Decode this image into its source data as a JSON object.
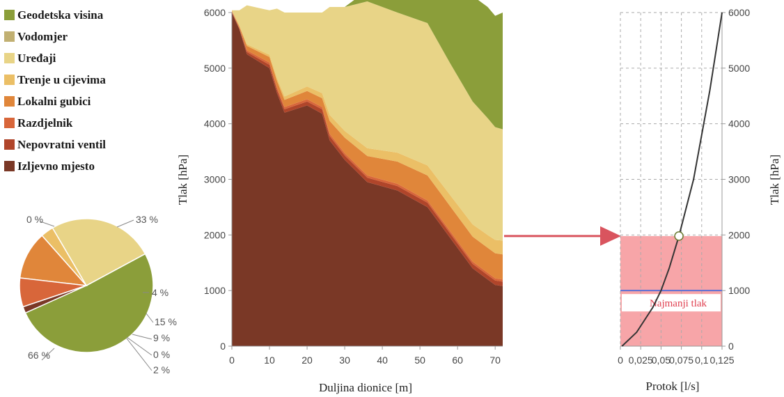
{
  "chart_data": [
    {
      "type": "area",
      "xlabel": "Duljina dionice [m]",
      "ylabel": "Tlak [hPa]",
      "xlim": [
        0,
        72
      ],
      "ylim": [
        0,
        6000
      ],
      "xticks": [
        "0",
        "10",
        "20",
        "30",
        "40",
        "50",
        "60",
        "70"
      ],
      "yticks": [
        "0",
        "1000",
        "2000",
        "3000",
        "4000",
        "5000",
        "6000"
      ],
      "grid": false,
      "legend_position": "left",
      "x": [
        0,
        2,
        4,
        10,
        12,
        14,
        20,
        24,
        26,
        30,
        36,
        44,
        52,
        58,
        64,
        68,
        70,
        72
      ],
      "series": [
        {
          "name": "Izljevno mjesto",
          "color": "#7a3826",
          "values": [
            6000,
            5700,
            5250,
            5000,
            4550,
            4200,
            4330,
            4180,
            3700,
            3350,
            2950,
            2800,
            2500,
            1950,
            1400,
            1200,
            1100,
            1080
          ]
        },
        {
          "name": "Nepovratni ventil",
          "color": "#b0452a",
          "values": [
            10,
            10,
            40,
            60,
            60,
            60,
            70,
            80,
            80,
            80,
            80,
            80,
            80,
            80,
            80,
            80,
            80,
            80
          ]
        },
        {
          "name": "Razdjelnik",
          "color": "#d8663a",
          "values": [
            10,
            10,
            30,
            40,
            40,
            40,
            40,
            40,
            40,
            40,
            40,
            40,
            40,
            40,
            40,
            40,
            40,
            40
          ]
        },
        {
          "name": "Lokalni gubici",
          "color": "#e0863a",
          "values": [
            10,
            30,
            80,
            100,
            120,
            130,
            150,
            160,
            230,
            280,
            350,
            400,
            450,
            450,
            450,
            450,
            450,
            450
          ]
        },
        {
          "name": "Trenje u cijevima",
          "color": "#ebbf66",
          "values": [
            10,
            20,
            30,
            40,
            50,
            60,
            80,
            90,
            110,
            120,
            140,
            160,
            180,
            200,
            220,
            230,
            240,
            250
          ]
        },
        {
          "name": "Uređaji",
          "color": "#e8d487",
          "values": [
            0,
            270,
            700,
            800,
            1250,
            1510,
            1330,
            1450,
            1940,
            2230,
            2640,
            2520,
            2560,
            2370,
            2210,
            2100,
            2030,
            2000
          ]
        },
        {
          "name": "Vodomjer",
          "color": "#c1b072",
          "values": [
            0,
            0,
            0,
            0,
            0,
            0,
            0,
            0,
            0,
            0,
            0,
            0,
            0,
            0,
            0,
            0,
            0,
            0
          ]
        },
        {
          "name": "Geodetska visina",
          "color": "#8b9e3a",
          "values": [
            0,
            0,
            0,
            0,
            0,
            0,
            0,
            0,
            0,
            0,
            200,
            400,
            700,
            1500,
            1900,
            2000,
            2000,
            2100
          ]
        }
      ]
    },
    {
      "type": "pie",
      "legend_position": "left",
      "slices": [
        {
          "name": "Geodetska visina",
          "value": 0.66,
          "color": "#8b9e3a",
          "label": "66 %"
        },
        {
          "name": "Vodomjer",
          "value": 0.0001,
          "color": "#c1b072",
          "label": "0 %"
        },
        {
          "name": "Uređaji",
          "value": 0.33,
          "color": "#e8d487",
          "label": "33 %"
        },
        {
          "name": "Trenje u cijevima",
          "value": 0.04,
          "color": "#ebbf66",
          "label": "4 %"
        },
        {
          "name": "Lokalni gubici",
          "value": 0.15,
          "color": "#e0863a",
          "label": "15 %"
        },
        {
          "name": "Razdjelnik",
          "value": 0.09,
          "color": "#d8663a",
          "label": "9 %"
        },
        {
          "name": "Nepovratni ventil",
          "value": 0.0001,
          "color": "#b0452a",
          "label": "0 %"
        },
        {
          "name": "Izljevno mjesto",
          "value": 0.02,
          "color": "#7a3826",
          "label": "2 %"
        }
      ]
    },
    {
      "type": "line",
      "xlabel": "Protok [l/s]",
      "ylabel": "Tlak [hPa]",
      "xlim": [
        0,
        0.125
      ],
      "ylim": [
        0,
        6000
      ],
      "xticks": [
        "0",
        "0,025",
        "0,05",
        "0,075",
        "0,1",
        "0,125"
      ],
      "yticks": [
        "0",
        "1000",
        "2000",
        "3000",
        "4000",
        "5000",
        "6000"
      ],
      "grid": true,
      "series": [
        {
          "name": "",
          "color": "#333333",
          "x": [
            0.002,
            0.02,
            0.04,
            0.05,
            0.06,
            0.072,
            0.09,
            0.11,
            0.125
          ],
          "values": [
            0,
            250,
            700,
            1000,
            1400,
            1980,
            3000,
            4600,
            6000
          ]
        }
      ],
      "operating_point": {
        "x": 0.072,
        "y": 1980
      },
      "pressure_band": {
        "from": 0,
        "to": 1980,
        "color": "#f7a5a8"
      },
      "min_pressure": {
        "value": 1000,
        "label": "Najmanji tlak",
        "line_color": "#5b6fd6",
        "label_color": "#e04050"
      },
      "arrow_color": "#d9545e"
    }
  ]
}
